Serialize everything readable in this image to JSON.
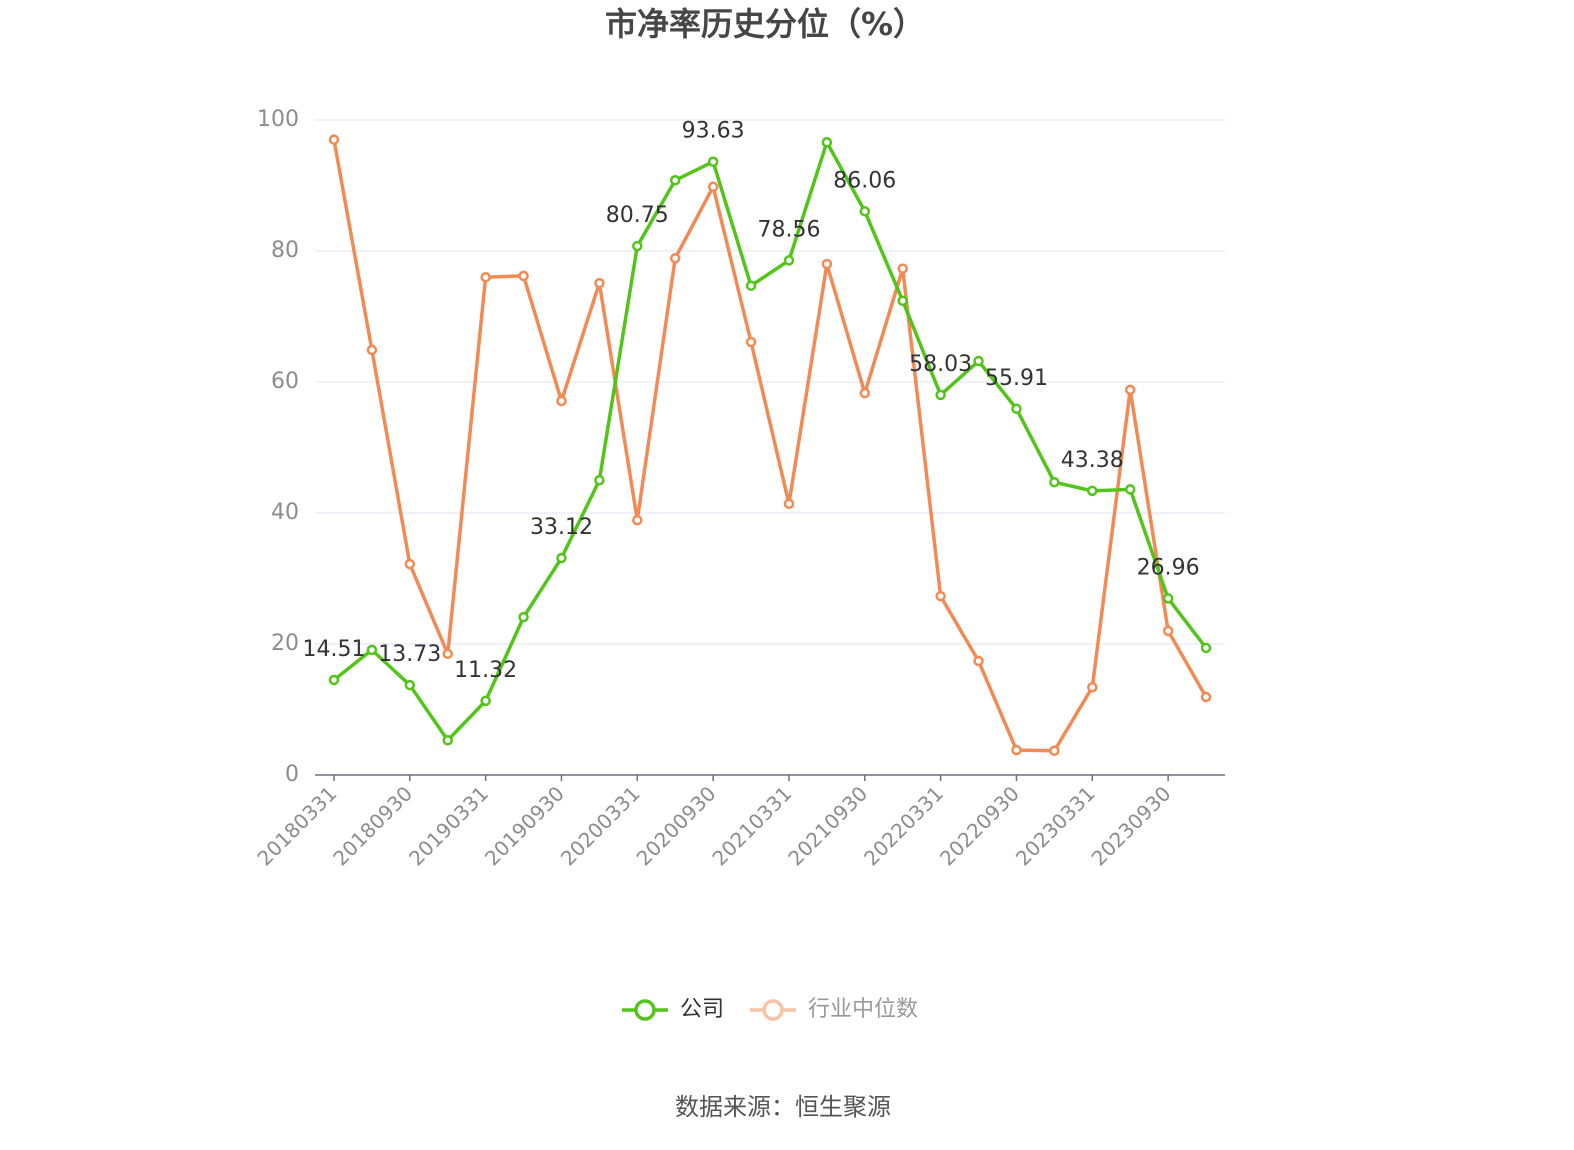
{
  "chart_data": {
    "type": "line",
    "title": "市净率历史分位（%）",
    "source": "数据来源：恒生聚源",
    "categories": [
      "20180331",
      null,
      "20180930",
      null,
      "20190331",
      null,
      "20190930",
      null,
      "20200331",
      null,
      "20200930",
      null,
      "20210331",
      null,
      "20210930",
      null,
      "20220331",
      null,
      "20220930",
      null,
      "20230331",
      null,
      "20230930",
      null
    ],
    "series": [
      {
        "name": "公司",
        "color": "#52c41a",
        "values": [
          14.51,
          19.1,
          13.73,
          5.3,
          11.32,
          24.1,
          33.12,
          45.0,
          80.75,
          90.8,
          93.63,
          74.7,
          78.56,
          96.6,
          86.06,
          72.4,
          58.03,
          63.2,
          55.91,
          44.7,
          43.38,
          43.6,
          26.96,
          19.4
        ]
      },
      {
        "name": "行业中位数",
        "color": "#f28a55",
        "values": [
          97.0,
          64.9,
          32.2,
          18.5,
          76.0,
          76.2,
          57.1,
          75.1,
          38.9,
          78.9,
          89.8,
          66.1,
          41.4,
          78.0,
          58.3,
          77.3,
          27.3,
          17.4,
          3.8,
          3.7,
          13.4,
          58.8,
          22.0,
          11.9
        ]
      }
    ],
    "ylim": [
      0,
      100
    ],
    "yticks": [
      0,
      20,
      40,
      60,
      80,
      100
    ],
    "grid": true
  }
}
